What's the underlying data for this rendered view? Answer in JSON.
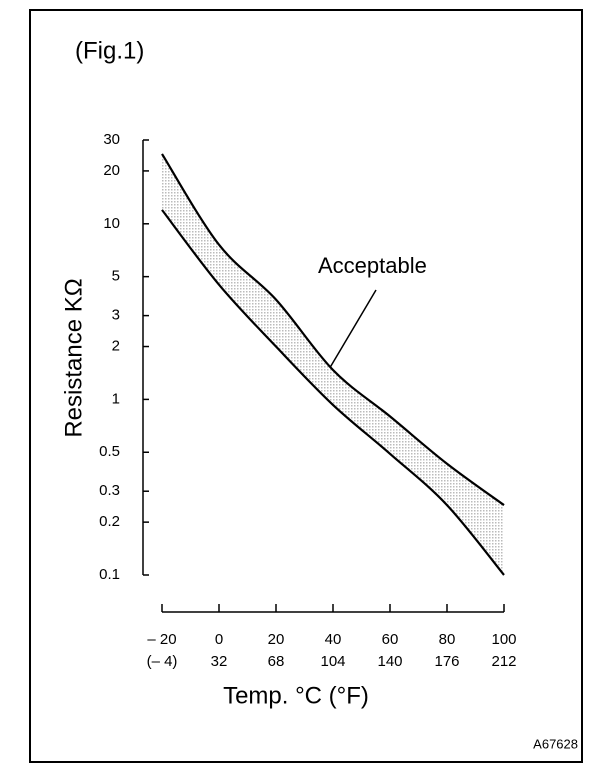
{
  "chart_data": {
    "type": "band",
    "figure_label": "(Fig.1)",
    "ylabel": "Resistance KΩ",
    "xlabel": "Temp. °C (°F)",
    "annotation": "Acceptable",
    "code": "A67628",
    "x": [
      -20,
      0,
      20,
      40,
      60,
      80,
      100
    ],
    "series": [
      {
        "color": "#000000",
        "values": [
          25,
          7.6,
          3.7,
          1.47,
          0.8,
          0.43,
          0.25
        ]
      },
      {
        "color": "#000000",
        "values": [
          12,
          4.5,
          2.0,
          0.93,
          0.49,
          0.25,
          0.1
        ]
      }
    ],
    "xlim": [
      -20,
      100
    ],
    "xticks": [
      {
        "value": -20,
        "label": "– 20"
      },
      0,
      20,
      40,
      60,
      80,
      100
    ],
    "x2ticks": [
      {
        "value": -20,
        "label": "(– 4)"
      },
      {
        "value": 0,
        "label": "32"
      },
      {
        "value": 20,
        "label": "68"
      },
      {
        "value": 40,
        "label": "104"
      },
      {
        "value": 60,
        "label": "140"
      },
      {
        "value": 80,
        "label": "176"
      },
      {
        "value": 100,
        "label": "212"
      }
    ],
    "ylim": [
      0.1,
      30
    ],
    "yticks": [
      0.1,
      0.2,
      0.3,
      0.5,
      1,
      2,
      3,
      5,
      10,
      20,
      30
    ],
    "log_y": true,
    "band_color": "#bbbbbb"
  }
}
